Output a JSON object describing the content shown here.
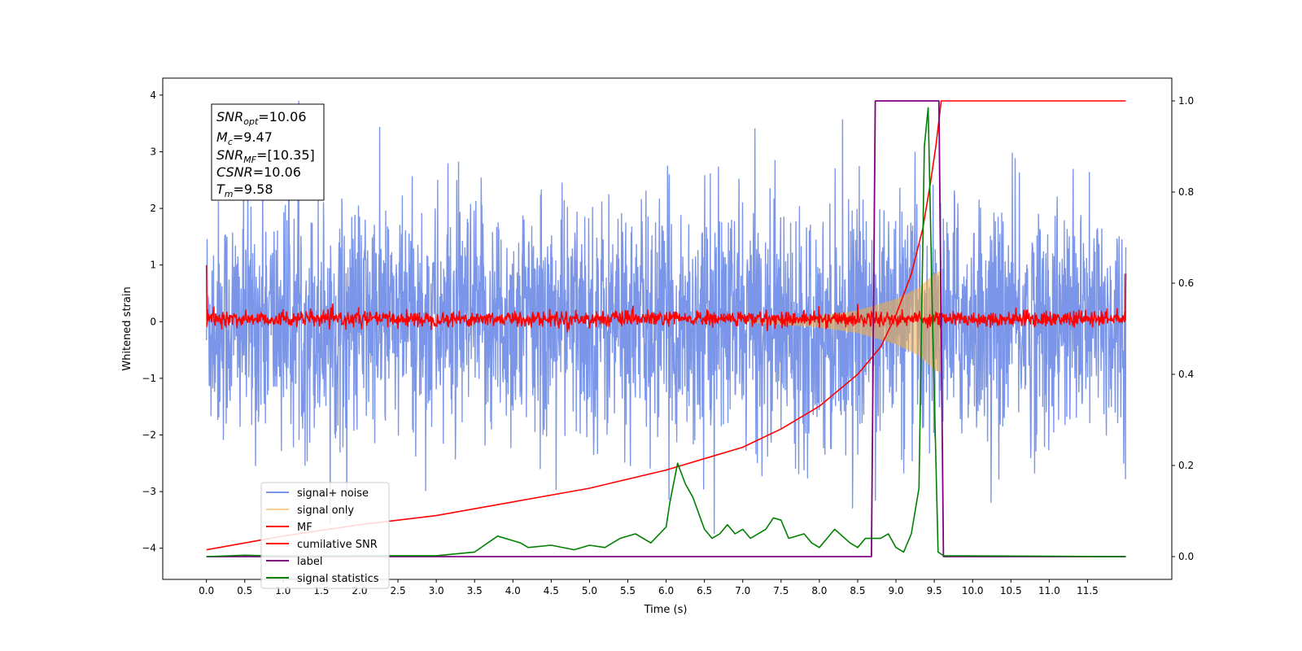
{
  "chart_data": {
    "type": "line",
    "xlabel": "Time (s)",
    "ylabel": "Whitened strain",
    "xlim": [
      -0.57,
      12.6
    ],
    "ylim": [
      -4.55,
      4.3
    ],
    "y2lim": [
      -0.05,
      1.05
    ],
    "xticks": [
      "0.0",
      "0.5",
      "1.0",
      "1.5",
      "2.0",
      "2.5",
      "3.0",
      "3.5",
      "4.0",
      "4.5",
      "5.0",
      "5.5",
      "6.0",
      "6.5",
      "7.0",
      "7.5",
      "8.0",
      "8.5",
      "9.0",
      "9.5",
      "10.0",
      "10.5",
      "11.0",
      "11.5"
    ],
    "yticks": [
      "4",
      "3",
      "2",
      "1",
      "0",
      "−1",
      "−2",
      "−3",
      "−4"
    ],
    "y2ticks": [
      "0.0",
      "0.2",
      "0.4",
      "0.6",
      "0.8",
      "1.0"
    ],
    "grid": false,
    "legend_position": "lower-left",
    "colors": {
      "signal_noise": "#7b96e8",
      "signal_only": "#f5b041",
      "mf": "#ff0000",
      "cumulative_snr": "#ff0000",
      "label": "#800080",
      "statistics": "#008000"
    },
    "annotation": {
      "snr_opt": {
        "sym": "SNR",
        "sub": "opt",
        "val": "=10.06"
      },
      "mc": {
        "sym": "M",
        "sub": "c",
        "val": "=9.47"
      },
      "snr_mf": {
        "sym": "SNR",
        "sub": "MF",
        "val": "=[10.35]"
      },
      "csnr": {
        "sym": "CSNR",
        "sub": "",
        "val": "=10.06"
      },
      "tm": {
        "sym": "T",
        "sub": "m",
        "val": "=9.58"
      }
    },
    "series": [
      {
        "name": "signal+ noise",
        "description": "whitened noisy strain, std ~1, peaks reach about +3.9 and -3.8",
        "time_range": [
          0.0,
          12.0
        ]
      },
      {
        "name": "signal only",
        "description": "chirp, amplitude grows toward merger",
        "points": [
          [
            7.0,
            0.01
          ],
          [
            8.0,
            0.1
          ],
          [
            8.5,
            0.2
          ],
          [
            9.0,
            0.4
          ],
          [
            9.3,
            0.6
          ],
          [
            9.5,
            0.85
          ],
          [
            9.58,
            0.9
          ]
        ]
      },
      {
        "name": "MF",
        "description": "matched filter output, narrow band around 0",
        "points": [
          [
            0.0,
            1.0
          ],
          [
            0.02,
            0.1
          ],
          [
            11.98,
            0.1
          ],
          [
            12.0,
            0.85
          ]
        ]
      },
      {
        "name": "cumilative SNR",
        "axis": "right",
        "points": [
          [
            0.0,
            0.015
          ],
          [
            1.0,
            0.045
          ],
          [
            2.0,
            0.07
          ],
          [
            3.0,
            0.09
          ],
          [
            4.0,
            0.12
          ],
          [
            5.0,
            0.15
          ],
          [
            6.0,
            0.19
          ],
          [
            7.0,
            0.24
          ],
          [
            7.5,
            0.28
          ],
          [
            8.0,
            0.33
          ],
          [
            8.5,
            0.4
          ],
          [
            8.8,
            0.46
          ],
          [
            9.0,
            0.53
          ],
          [
            9.2,
            0.62
          ],
          [
            9.35,
            0.72
          ],
          [
            9.45,
            0.82
          ],
          [
            9.52,
            0.9
          ],
          [
            9.57,
            0.97
          ],
          [
            9.59,
            1.0
          ],
          [
            12.0,
            1.0
          ]
        ]
      },
      {
        "name": "label",
        "axis": "right",
        "points": [
          [
            0.0,
            0.0
          ],
          [
            8.68,
            0.0
          ],
          [
            8.73,
            1.0
          ],
          [
            9.56,
            1.0
          ],
          [
            9.62,
            0.0
          ],
          [
            12.0,
            0.0
          ]
        ]
      },
      {
        "name": "signal statistics",
        "axis": "right",
        "points": [
          [
            0.0,
            0.0
          ],
          [
            0.5,
            0.003
          ],
          [
            1.0,
            0.001
          ],
          [
            2.0,
            0.002
          ],
          [
            3.0,
            0.002
          ],
          [
            3.5,
            0.01
          ],
          [
            3.8,
            0.045
          ],
          [
            4.0,
            0.035
          ],
          [
            4.1,
            0.03
          ],
          [
            4.2,
            0.02
          ],
          [
            4.5,
            0.025
          ],
          [
            4.8,
            0.015
          ],
          [
            5.0,
            0.025
          ],
          [
            5.2,
            0.02
          ],
          [
            5.4,
            0.04
          ],
          [
            5.6,
            0.05
          ],
          [
            5.8,
            0.03
          ],
          [
            6.0,
            0.065
          ],
          [
            6.05,
            0.12
          ],
          [
            6.15,
            0.205
          ],
          [
            6.25,
            0.16
          ],
          [
            6.35,
            0.13
          ],
          [
            6.5,
            0.06
          ],
          [
            6.6,
            0.04
          ],
          [
            6.7,
            0.05
          ],
          [
            6.8,
            0.07
          ],
          [
            6.9,
            0.05
          ],
          [
            7.0,
            0.06
          ],
          [
            7.1,
            0.04
          ],
          [
            7.3,
            0.06
          ],
          [
            7.4,
            0.085
          ],
          [
            7.5,
            0.08
          ],
          [
            7.6,
            0.04
          ],
          [
            7.8,
            0.05
          ],
          [
            7.9,
            0.03
          ],
          [
            8.0,
            0.02
          ],
          [
            8.1,
            0.04
          ],
          [
            8.2,
            0.06
          ],
          [
            8.4,
            0.03
          ],
          [
            8.5,
            0.02
          ],
          [
            8.6,
            0.04
          ],
          [
            8.8,
            0.04
          ],
          [
            8.9,
            0.05
          ],
          [
            9.0,
            0.02
          ],
          [
            9.1,
            0.01
          ],
          [
            9.2,
            0.05
          ],
          [
            9.3,
            0.15
          ],
          [
            9.37,
            0.9
          ],
          [
            9.42,
            0.985
          ],
          [
            9.48,
            0.5
          ],
          [
            9.55,
            0.01
          ],
          [
            9.62,
            0.002
          ],
          [
            12.0,
            0.0
          ]
        ]
      }
    ]
  }
}
